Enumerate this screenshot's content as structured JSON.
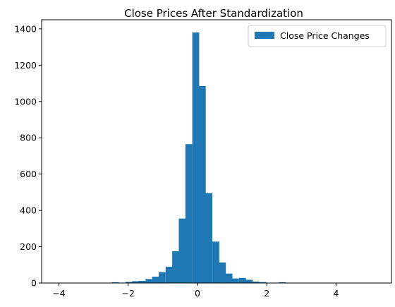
{
  "chart_data": {
    "type": "bar",
    "title": "Close Prices After Standardization",
    "xlabel": "",
    "ylabel": "",
    "xlim": [
      -4.5,
      5.6
    ],
    "ylim": [
      0,
      1450
    ],
    "x_ticks": [
      -4,
      -2,
      0,
      2,
      4
    ],
    "x_tick_labels": [
      "−4",
      "−2",
      "0",
      "2",
      "4"
    ],
    "y_ticks": [
      0,
      200,
      400,
      600,
      800,
      1000,
      1200,
      1400
    ],
    "y_tick_labels": [
      "0",
      "200",
      "400",
      "600",
      "800",
      "1000",
      "1200",
      "1400"
    ],
    "grid": false,
    "legend_position": "upper-right",
    "series": [
      {
        "name": "Close Price Changes",
        "color": "#1f77b4",
        "bin_width": 0.1925,
        "bin_starts": [
          -4.01,
          -3.82,
          -3.62,
          -3.43,
          -3.24,
          -3.05,
          -2.85,
          -2.66,
          -2.47,
          -2.27,
          -2.08,
          -1.89,
          -1.7,
          -1.5,
          -1.31,
          -1.12,
          -0.92,
          -0.73,
          -0.54,
          -0.35,
          -0.15,
          0.04,
          0.23,
          0.43,
          0.62,
          0.81,
          1.0,
          1.2,
          1.39,
          1.58,
          1.78,
          1.97,
          2.16,
          2.35,
          2.55,
          2.74
        ],
        "values": [
          1,
          0,
          0,
          0,
          0,
          0,
          0,
          1,
          4,
          2,
          6,
          10,
          12,
          22,
          35,
          60,
          90,
          175,
          355,
          765,
          1380,
          1085,
          495,
          228,
          113,
          52,
          25,
          28,
          18,
          8,
          5,
          1,
          1,
          4,
          2,
          1
        ]
      }
    ]
  }
}
